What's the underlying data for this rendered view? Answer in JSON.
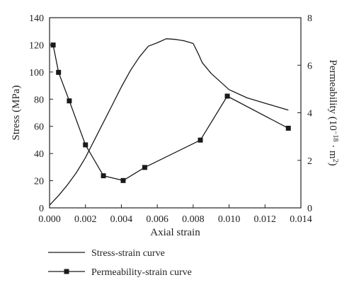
{
  "chart_data": {
    "type": "line",
    "xlabel": "Axial strain",
    "ylabel_left": "Stress (MPa)",
    "ylabel_right_parts": [
      "Permeability (10",
      "−18",
      " · m",
      "2",
      ")"
    ],
    "xlim": [
      0,
      0.014
    ],
    "ylim_left": [
      0,
      140
    ],
    "ylim_right": [
      0,
      8
    ],
    "x_ticks": [
      "0.000",
      "0.002",
      "0.004",
      "0.006",
      "0.008",
      "0.010",
      "0.012",
      "0.014"
    ],
    "y_left_ticks": [
      "0",
      "20",
      "40",
      "60",
      "80",
      "100",
      "120",
      "140"
    ],
    "y_right_ticks": [
      "0",
      "2",
      "4",
      "6",
      "8"
    ],
    "grid": false,
    "legend_position": "bottom-left",
    "colors": {
      "line": "#1a1a1a",
      "axis": "#222222",
      "background": "#ffffff"
    },
    "series": [
      {
        "name": "Stress-strain curve",
        "axis": "left",
        "marker": "none",
        "x": [
          0,
          0.0005,
          0.001,
          0.0015,
          0.002,
          0.0025,
          0.003,
          0.0035,
          0.004,
          0.0045,
          0.005,
          0.0055,
          0.006,
          0.0065,
          0.007,
          0.0075,
          0.008,
          0.0083,
          0.0085,
          0.009,
          0.0095,
          0.01,
          0.011,
          0.012,
          0.0133
        ],
        "y": [
          2,
          9,
          17,
          26,
          37,
          50,
          63,
          76,
          89,
          101,
          111,
          119,
          121.5,
          124.5,
          124,
          123,
          121,
          113,
          107,
          99,
          93,
          87,
          81,
          77,
          72
        ]
      },
      {
        "name": "Permeability-strain curve",
        "axis": "right",
        "marker": "square",
        "x": [
          0.0002,
          0.0005,
          0.0011,
          0.002,
          0.003,
          0.0041,
          0.0053,
          0.0084,
          0.0099,
          0.0133
        ],
        "y": [
          6.85,
          5.7,
          4.5,
          2.65,
          1.35,
          1.15,
          1.7,
          2.85,
          4.7,
          3.35
        ]
      }
    ]
  }
}
